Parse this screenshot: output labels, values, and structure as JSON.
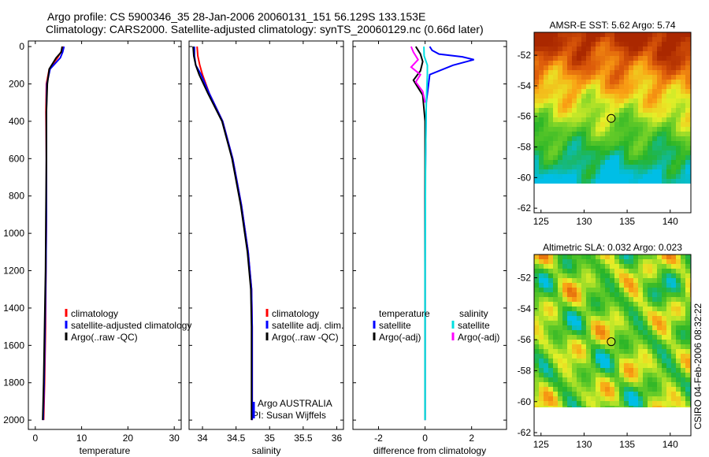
{
  "header": {
    "line1": "Argo profile: CS 5900346_35 28-Jan-2006 20060131_151 56.129S 133.153E",
    "line2": "Climatology: CARS2000. Satellite-adjusted climatology: synTS_20060129.nc (0.66d later)"
  },
  "side_label": "CSIRO 04-Feb-2006 08:32:22",
  "colors": {
    "climatology": "#ff0000",
    "satellite": "#0000ff",
    "argo": "#000000",
    "salinity_satellite": "#00e0e0",
    "salinity_argo": "#ff00ff"
  },
  "chart_data": [
    {
      "type": "line",
      "name": "temperature",
      "xlabel": "temperature",
      "ylabel": "",
      "xlim": [
        -1.5,
        31.5
      ],
      "ylim": [
        2050,
        -30
      ],
      "xticks": [
        0,
        10,
        20,
        30
      ],
      "yticks": [
        0,
        200,
        400,
        600,
        800,
        1000,
        1200,
        1400,
        1600,
        1800,
        2000
      ],
      "legend": [
        "climatology",
        "satellite-adjusted climatology",
        "Argo(..raw -QC)"
      ],
      "series": [
        {
          "name": "climatology",
          "color": "#ff0000",
          "x": [
            6.1,
            5.5,
            4.8,
            3.0,
            2.4,
            2.3,
            2.4,
            2.4,
            2.3,
            2.2,
            2.0,
            1.8
          ],
          "y": [
            0,
            30,
            60,
            120,
            200,
            350,
            600,
            900,
            1200,
            1500,
            1800,
            2000
          ]
        },
        {
          "name": "satellite-adjusted climatology",
          "color": "#0000ff",
          "x": [
            6.2,
            5.9,
            5.4,
            3.2,
            2.5,
            2.4,
            2.4,
            2.4,
            2.3,
            2.1,
            1.9,
            1.7
          ],
          "y": [
            0,
            30,
            60,
            120,
            200,
            350,
            600,
            900,
            1200,
            1500,
            1800,
            2000
          ]
        },
        {
          "name": "Argo(..raw -QC)",
          "color": "#000000",
          "x": [
            5.8,
            5.6,
            4.5,
            3.0,
            2.6,
            2.4,
            2.4,
            2.3,
            2.2,
            2.0,
            1.8,
            1.6
          ],
          "y": [
            0,
            30,
            60,
            120,
            200,
            350,
            600,
            900,
            1200,
            1500,
            1800,
            2000
          ]
        }
      ]
    },
    {
      "type": "line",
      "name": "salinity",
      "xlabel": "salinity",
      "ylabel": "",
      "xlim": [
        33.8,
        36.1
      ],
      "ylim": [
        2050,
        -30
      ],
      "xticks": [
        34,
        34.5,
        35,
        35.5,
        36
      ],
      "xticklabels": [
        "34",
        "34.5",
        "35",
        "35.5",
        "36"
      ],
      "legend": [
        "climatology",
        "satellite adj. clim.",
        "Argo(..raw -QC)"
      ],
      "annotation": [
        "Argo AUSTRALIA",
        "PI: Susan Wijffels"
      ],
      "series": [
        {
          "name": "climatology",
          "color": "#ff0000",
          "x": [
            33.92,
            33.93,
            33.96,
            34.0,
            34.1,
            34.3,
            34.45,
            34.58,
            34.68,
            34.73,
            34.74,
            34.74,
            34.74
          ],
          "y": [
            0,
            50,
            100,
            150,
            250,
            400,
            600,
            850,
            1100,
            1300,
            1500,
            1800,
            2000
          ]
        },
        {
          "name": "satellite adj. clim.",
          "color": "#0000ff",
          "x": [
            33.88,
            33.88,
            33.9,
            33.98,
            34.1,
            34.3,
            34.45,
            34.58,
            34.68,
            34.73,
            34.74,
            34.74,
            34.74
          ],
          "y": [
            0,
            50,
            100,
            150,
            250,
            400,
            600,
            850,
            1100,
            1300,
            1500,
            1800,
            2000
          ]
        },
        {
          "name": "Argo(..raw -QC)",
          "color": "#000000",
          "x": [
            33.86,
            33.87,
            33.9,
            33.95,
            34.08,
            34.29,
            34.44,
            34.57,
            34.67,
            34.72,
            34.73,
            34.73,
            34.73
          ],
          "y": [
            0,
            50,
            100,
            150,
            250,
            400,
            600,
            850,
            1100,
            1300,
            1500,
            1800,
            2000
          ]
        }
      ]
    },
    {
      "type": "line",
      "name": "difference",
      "xlabel": "difference from climatology",
      "ylabel": "",
      "xlim": [
        -3.1,
        3.5
      ],
      "ylim": [
        2050,
        -30
      ],
      "xticks": [
        -2,
        0,
        2
      ],
      "legend_left": [
        "temperature",
        "satellite",
        "Argo(-adj)"
      ],
      "legend_right": [
        "salinity",
        "satellite",
        "Argo(-adj)"
      ],
      "series": [
        {
          "name": "temperature satellite",
          "color": "#0000ff",
          "x": [
            0.2,
            0.3,
            0.6,
            1.6,
            2.1,
            1.2,
            0.2,
            0.05,
            0.0,
            0.0,
            0.0
          ],
          "y": [
            0,
            20,
            40,
            55,
            70,
            100,
            150,
            300,
            800,
            1400,
            2000
          ]
        },
        {
          "name": "temperature Argo(-adj)",
          "color": "#000000",
          "x": [
            -0.4,
            -0.2,
            -0.1,
            -0.2,
            -0.5,
            -0.3,
            -0.1,
            0.0,
            0.0,
            0.0
          ],
          "y": [
            0,
            40,
            80,
            130,
            180,
            220,
            260,
            400,
            1000,
            2000
          ]
        },
        {
          "name": "salinity satellite",
          "color": "#00e0e0",
          "x": [
            -0.05,
            -0.04,
            0.1,
            0.1,
            0.05,
            0.02,
            0.0,
            0.0
          ],
          "y": [
            0,
            50,
            100,
            150,
            300,
            600,
            1200,
            2000
          ]
        },
        {
          "name": "salinity Argo(-adj)",
          "color": "#ff00ff",
          "x": [
            -0.6,
            -0.5,
            -0.3,
            -0.6,
            -0.2,
            -0.4,
            -0.1,
            0.0
          ],
          "y": [
            0,
            30,
            70,
            110,
            150,
            190,
            240,
            300
          ]
        }
      ]
    },
    {
      "type": "heatmap",
      "name": "sst-map",
      "title": "AMSR-E SST: 5.62 Argo: 5.74",
      "xlim": [
        124.2,
        142.4
      ],
      "ylim": [
        -62.3,
        -50.5
      ],
      "xticks": [
        125,
        130,
        135,
        140
      ],
      "yticks": [
        -52,
        -54,
        -56,
        -58,
        -60,
        -62
      ],
      "marker": {
        "lon": 133.15,
        "lat": -56.13
      }
    },
    {
      "type": "heatmap",
      "name": "sla-map",
      "title": "Altimetric SLA: 0.032 Argo: 0.023",
      "xlim": [
        124.2,
        142.4
      ],
      "ylim": [
        -62.2,
        -50.5
      ],
      "xticks": [
        125,
        130,
        135,
        140
      ],
      "yticks": [
        -52,
        -54,
        -56,
        -58,
        -60,
        -62
      ],
      "marker": {
        "lon": 133.15,
        "lat": -56.13
      }
    }
  ]
}
